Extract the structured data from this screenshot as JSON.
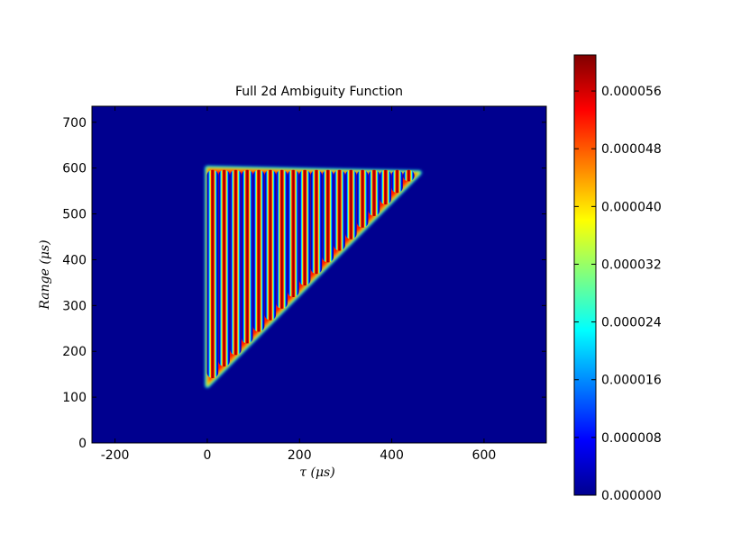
{
  "chart_data": {
    "type": "heatmap",
    "title": "Full 2d Ambiguity Function",
    "xlabel": "τ (μs)",
    "ylabel": "Range (μs)",
    "xlim": [
      -250,
      735
    ],
    "ylim": [
      0,
      735
    ],
    "x_ticks": [
      -200,
      0,
      200,
      400,
      600
    ],
    "x_tick_labels": [
      "-200",
      "0",
      "200",
      "400",
      "600"
    ],
    "y_ticks": [
      0,
      100,
      200,
      300,
      400,
      500,
      600,
      700
    ],
    "y_tick_labels": [
      "0",
      "100",
      "200",
      "300",
      "400",
      "500",
      "600",
      "700"
    ],
    "colormap": "jet",
    "colorbar": {
      "min": 0.0,
      "max": 6.1e-05,
      "ticks": [
        0.0,
        8e-06,
        1.6e-05,
        2.4e-05,
        3.2e-05,
        4e-05,
        4.8e-05,
        5.6e-05
      ],
      "tick_labels": [
        "0.000000",
        "0.000008",
        "0.000016",
        "0.000024",
        "0.000032",
        "0.000040",
        "0.000048",
        "0.000056"
      ]
    },
    "region": {
      "shape": "right-triangle",
      "vertices_data_units": [
        [
          0,
          125
        ],
        [
          0,
          600
        ],
        [
          460,
          590
        ]
      ],
      "stripes": {
        "count": 18,
        "tau_start": 0,
        "tau_spacing": 25,
        "bottom_range_at_tau0": 125,
        "top_range": 600
      },
      "peak_value": 6.1e-05,
      "background_value": 0.0
    },
    "grid": false
  }
}
